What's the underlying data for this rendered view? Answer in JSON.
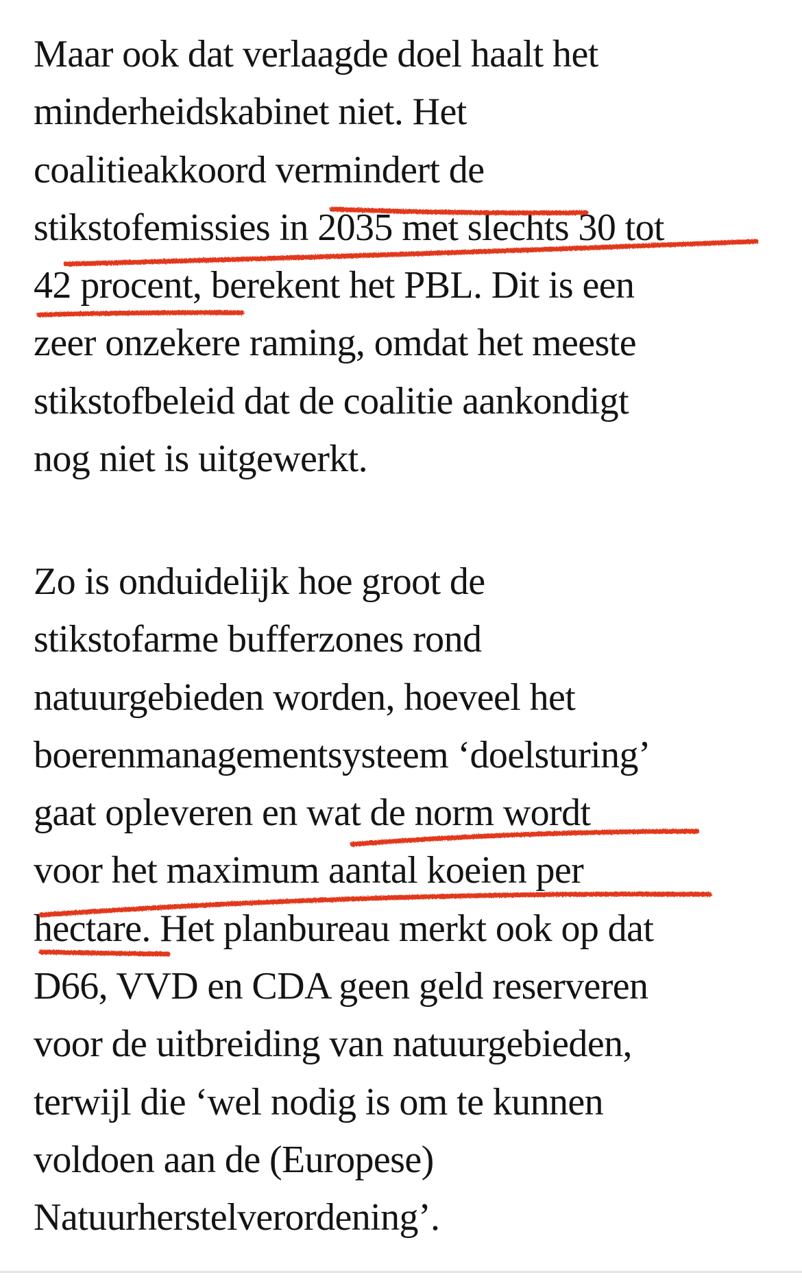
{
  "article": {
    "paragraphs": [
      {
        "lines": [
          "Maar ook dat verlaagde doel haalt het",
          "minderheidskabinet niet. Het",
          "coalitieakkoord vermindert de",
          "stikstofemissies in 2035 met slechts 30 tot",
          "42 procent, berekent het PBL. Dit is een",
          "zeer onzekere raming, omdat het meeste",
          "stikstofbeleid dat de coalitie aankondigt",
          "nog niet is uitgewerkt."
        ]
      },
      {
        "lines": [
          "Zo is onduidelijk hoe groot de",
          "stikstofarme bufferzones rond",
          "natuurgebieden worden, hoeveel het",
          "boerenmanagementsysteem ‘doelsturing’",
          "gaat opleveren en wat de norm wordt",
          "voor het maximum aantal koeien per",
          "hectare. Het planbureau merkt ook op dat",
          "D66, VVD en CDA geen geld reserveren",
          "voor de uitbreiding van natuurgebieden,",
          "terwijl die ‘wel nodig is om te kunnen",
          "voldoen aan de (Europese)",
          "Natuurherstelverordening’."
        ]
      }
    ]
  },
  "highlight_color": "#e2391c"
}
